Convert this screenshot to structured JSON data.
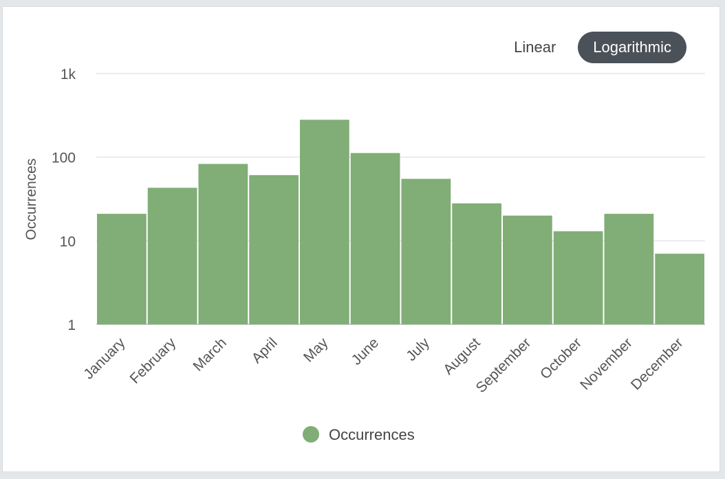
{
  "toggle": {
    "linear_label": "Linear",
    "log_label": "Logarithmic",
    "selected": "Logarithmic"
  },
  "chart_data": {
    "type": "bar",
    "title": "",
    "xlabel": "",
    "ylabel": "Occurrences",
    "yscale": "log",
    "ylim": [
      1,
      1000
    ],
    "yticks": [
      1,
      10,
      100,
      1000
    ],
    "ytick_labels": [
      "1",
      "10",
      "100",
      "1k"
    ],
    "grid": true,
    "legend_position": "bottom-center",
    "categories": [
      "January",
      "February",
      "March",
      "April",
      "May",
      "June",
      "July",
      "August",
      "September",
      "October",
      "November",
      "December"
    ],
    "series": [
      {
        "name": "Occurrences",
        "color": "#80ae76",
        "values": [
          21,
          43,
          83,
          61,
          280,
          112,
          55,
          28,
          20,
          13,
          21,
          7
        ]
      }
    ]
  }
}
